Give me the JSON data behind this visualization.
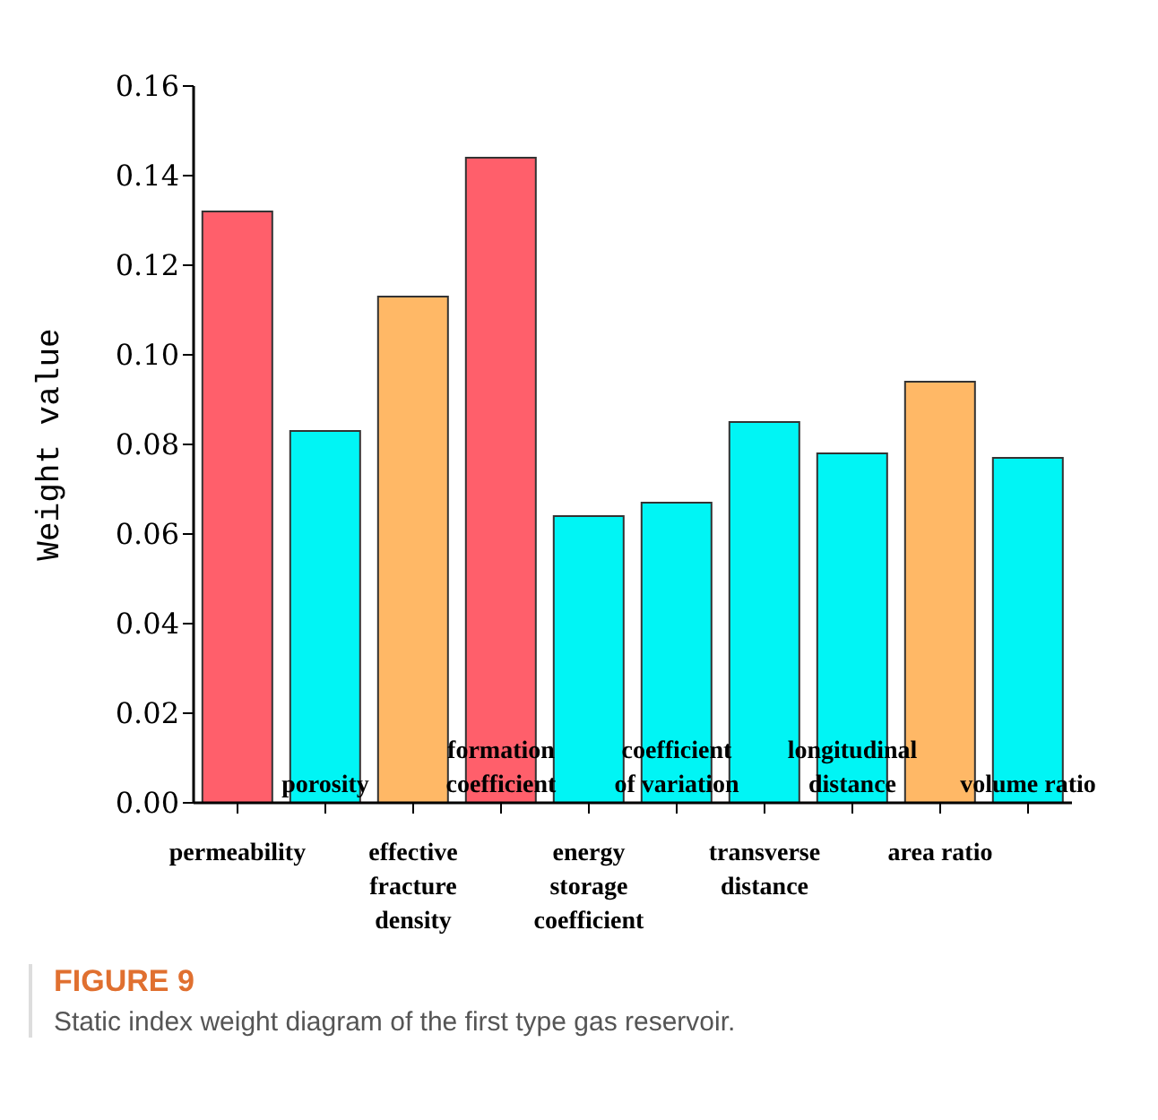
{
  "chart_data": {
    "type": "bar",
    "ylabel": "Weight value",
    "categories": [
      "permeability",
      "porosity",
      "effective fracture density",
      "formation coefficient",
      "energy storage coefficient",
      "coefficient of variation",
      "transverse distance",
      "longitudinal distance",
      "area ratio",
      "volume ratio"
    ],
    "values": [
      0.132,
      0.083,
      0.113,
      0.144,
      0.064,
      0.067,
      0.085,
      0.078,
      0.094,
      0.077
    ],
    "colors": [
      "#ff5f6b",
      "#00f5f5",
      "#ffb866",
      "#ff5f6b",
      "#00f5f5",
      "#00f5f5",
      "#00f5f5",
      "#00f5f5",
      "#ffb866",
      "#00f5f5"
    ],
    "ylim": [
      0,
      0.16
    ],
    "yticks": [
      {
        "value": 0,
        "label": "0.00"
      },
      {
        "value": 0.02,
        "label": "0.02"
      },
      {
        "value": 0.04,
        "label": "0.04"
      },
      {
        "value": 0.06,
        "label": "0.06"
      },
      {
        "value": 0.08,
        "label": "0.08"
      },
      {
        "value": 0.1,
        "label": "0.10"
      },
      {
        "value": 0.12,
        "label": "0.12"
      },
      {
        "value": 0.14,
        "label": "0.14"
      },
      {
        "value": 0.16,
        "label": "0.16"
      }
    ],
    "grid": false,
    "legend": false,
    "annotations": [
      "FIGURE 9",
      "Static index weight diagram of the first type gas reservoir."
    ]
  }
}
